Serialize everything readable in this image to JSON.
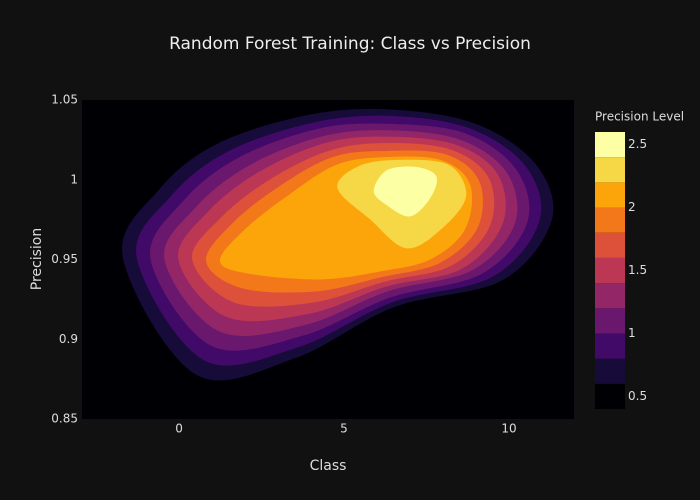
{
  "chart_data": {
    "type": "contour",
    "title": "Random Forest Training: Class vs Precision",
    "x_label": "Class",
    "y_label": "Precision",
    "xlim": [
      -2.94,
      11.97
    ],
    "xticks": [
      0,
      5,
      10
    ],
    "ylim": [
      0.85,
      1.05
    ],
    "yticks": [
      0.85,
      0.9,
      0.95,
      1,
      1.05
    ],
    "colorbar": {
      "title": "Precision Level",
      "range": [
        0.4,
        2.6
      ],
      "ticks": [
        0.5,
        1,
        1.5,
        2,
        2.5
      ],
      "band_edges": [
        0.4,
        0.6,
        0.8,
        1.0,
        1.2,
        1.4,
        1.6,
        1.8,
        2.0,
        2.2,
        2.4,
        2.6
      ],
      "colors": [
        "#000004",
        "#160b39",
        "#420a68",
        "#6a176e",
        "#932667",
        "#bc3754",
        "#dd513a",
        "#f37819",
        "#fca50a",
        "#f6d746",
        "#fcffa4"
      ]
    },
    "contours": [
      {
        "level": 0.6,
        "color": "#160b39",
        "x": [
          -1.7,
          -0.6,
          1.2,
          4.0,
          6.5,
          9.0,
          10.8,
          11.3,
          9.8,
          6.5,
          3.5,
          0.5
        ],
        "y": [
          0.951,
          0.994,
          1.023,
          1.041,
          1.044,
          1.035,
          1.01,
          0.975,
          0.937,
          0.92,
          0.888,
          0.878
        ]
      },
      {
        "level": 0.8,
        "color": "#420a68",
        "x": [
          -1.28,
          -0.23,
          1.51,
          4.1,
          6.44,
          8.84,
          10.52,
          10.92,
          9.49,
          6.44,
          3.61,
          0.74
        ],
        "y": [
          0.951,
          0.99,
          1.018,
          1.036,
          1.04,
          1.032,
          1.008,
          0.974,
          0.939,
          0.923,
          0.895,
          0.887
        ]
      },
      {
        "level": 1.0,
        "color": "#6a176e",
        "x": [
          -0.86,
          0.14,
          1.82,
          4.21,
          6.38,
          8.69,
          10.23,
          10.55,
          9.17,
          6.38,
          3.72,
          0.97
        ],
        "y": [
          0.95,
          0.987,
          1.014,
          1.032,
          1.035,
          1.029,
          1.006,
          0.973,
          0.941,
          0.926,
          0.902,
          0.896
        ]
      },
      {
        "level": 1.2,
        "color": "#932667",
        "x": [
          -0.44,
          0.52,
          2.13,
          4.31,
          6.32,
          8.53,
          9.95,
          10.17,
          8.86,
          6.32,
          3.83,
          1.21
        ],
        "y": [
          0.95,
          0.983,
          1.009,
          1.027,
          1.031,
          1.025,
          1.004,
          0.972,
          0.943,
          0.93,
          0.909,
          0.905
        ]
      },
      {
        "level": 1.4,
        "color": "#bc3754",
        "x": [
          -0.02,
          0.88,
          2.43,
          4.42,
          6.27,
          8.38,
          9.67,
          9.8,
          8.55,
          6.27,
          3.94,
          1.44
        ],
        "y": [
          0.95,
          0.98,
          1.005,
          1.023,
          1.027,
          1.022,
          1.003,
          0.972,
          0.944,
          0.933,
          0.916,
          0.914
        ]
      },
      {
        "level": 1.6,
        "color": "#dd513a",
        "x": [
          0.4,
          1.26,
          2.74,
          4.52,
          6.21,
          8.22,
          9.39,
          9.42,
          8.24,
          6.21,
          4.05,
          1.68
        ],
        "y": [
          0.95,
          0.976,
          1.0,
          1.018,
          1.023,
          1.019,
          1.001,
          0.971,
          0.946,
          0.936,
          0.923,
          0.923
        ]
      },
      {
        "level": 1.8,
        "color": "#f37819",
        "x": [
          0.82,
          1.63,
          3.05,
          4.63,
          6.15,
          8.07,
          9.1,
          9.05,
          7.92,
          6.15,
          4.16,
          1.91
        ],
        "y": [
          0.949,
          0.973,
          0.996,
          1.014,
          1.018,
          1.016,
          0.999,
          0.97,
          0.948,
          0.939,
          0.93,
          0.932
        ]
      },
      {
        "level": 2.0,
        "color": "#fca50a",
        "x": [
          1.24,
          2.0,
          3.36,
          4.73,
          6.09,
          7.91,
          8.82,
          8.67,
          7.61,
          6.09,
          4.27,
          2.15
        ],
        "y": [
          0.949,
          0.969,
          0.991,
          1.009,
          1.014,
          1.0125,
          0.997,
          0.969,
          0.95,
          0.9425,
          0.9375,
          0.941
        ]
      },
      {
        "level": 2.2,
        "color": "#f6d746",
        "x": [
          4.8,
          5.5,
          6.8,
          8.2,
          8.7,
          8.0,
          6.9,
          5.8
        ],
        "y": [
          0.995,
          1.009,
          1.0125,
          1.009,
          0.99,
          0.97,
          0.957,
          0.975
        ]
      },
      {
        "level": 2.4,
        "color": "#fcffa4",
        "x": [
          5.9,
          6.3,
          7.2,
          7.8,
          7.6,
          7.0,
          6.3
        ],
        "y": [
          0.993,
          1.006,
          1.008,
          1.002,
          0.988,
          0.977,
          0.984
        ]
      }
    ]
  }
}
